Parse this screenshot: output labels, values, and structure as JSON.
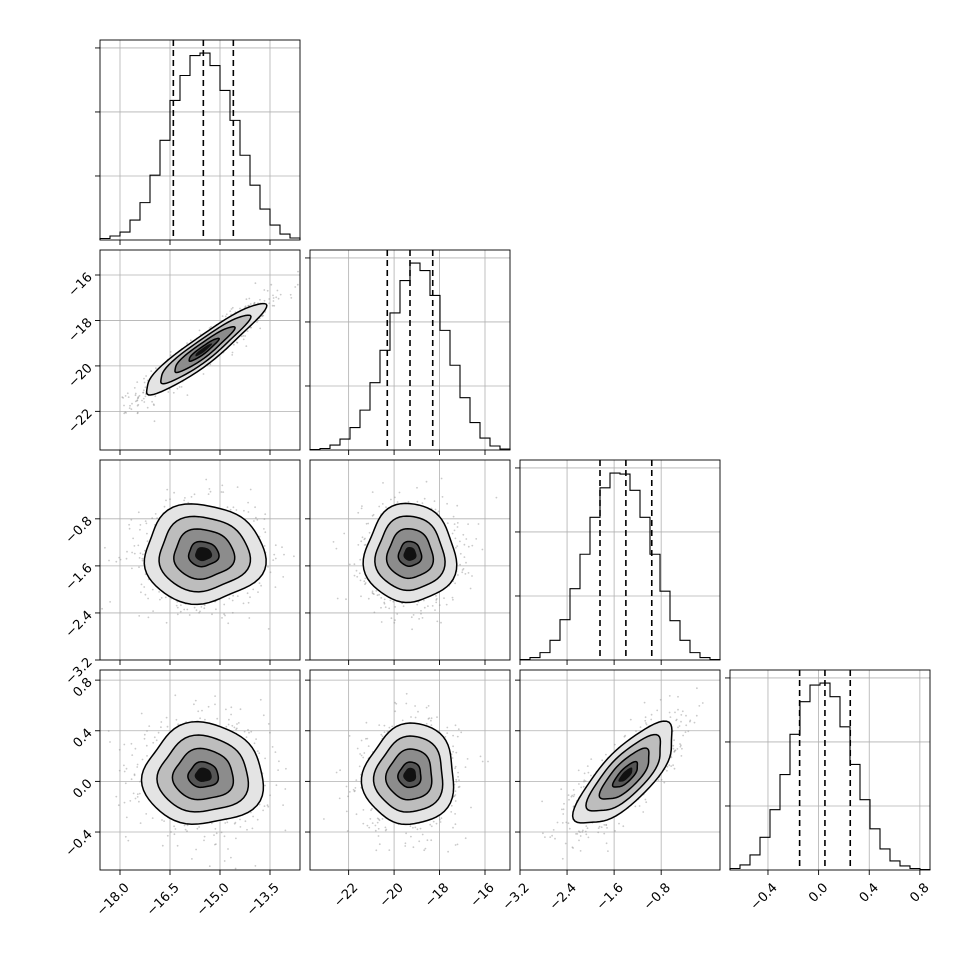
{
  "chart_data": {
    "type": "corner",
    "grid": true,
    "parameters": [
      {
        "name": "",
        "mean": -15.5,
        "std": 0.9,
        "range": [
          -18.6,
          -12.6
        ],
        "ticks": [
          -18.0,
          -16.5,
          -15.0,
          -13.5
        ],
        "tick_labels": [
          "−18.0",
          "−16.5",
          "−15.0",
          "−13.5"
        ],
        "quantiles": [
          -16.4,
          -15.5,
          -14.6
        ]
      },
      {
        "name": "",
        "mean": -19.3,
        "std": 1.0,
        "range": [
          -23.7,
          -14.9
        ],
        "ticks": [
          -22,
          -20,
          -18,
          -16
        ],
        "tick_labels": [
          "−22",
          "−20",
          "−18",
          "−16"
        ],
        "quantiles": [
          -20.3,
          -19.3,
          -18.3
        ]
      },
      {
        "name": "",
        "mean": -1.4,
        "std": 0.42,
        "range": [
          -3.2,
          0.2
        ],
        "ticks": [
          -3.2,
          -2.4,
          -1.6,
          -0.8
        ],
        "tick_labels": [
          "−3.2",
          "−2.4",
          "−1.6",
          "−0.8"
        ],
        "quantiles": [
          -1.84,
          -1.4,
          -0.96
        ]
      },
      {
        "name": "",
        "mean": 0.05,
        "std": 0.2,
        "range": [
          -0.7,
          0.88
        ],
        "ticks": [
          -0.4,
          0.0,
          0.4,
          0.8
        ],
        "tick_labels": [
          "−0.4",
          "0.0",
          "0.4",
          "0.8"
        ],
        "quantiles": [
          -0.15,
          0.05,
          0.25
        ]
      }
    ],
    "correlations": [
      {
        "x": 0,
        "y": 1,
        "rho": 0.93
      },
      {
        "x": 0,
        "y": 2,
        "rho": 0.0
      },
      {
        "x": 1,
        "y": 2,
        "rho": 0.0
      },
      {
        "x": 0,
        "y": 3,
        "rho": 0.0
      },
      {
        "x": 1,
        "y": 3,
        "rho": 0.05
      },
      {
        "x": 2,
        "y": 3,
        "rho": 0.75
      }
    ],
    "histograms": [
      {
        "param": 0,
        "bins": 20,
        "counts": [
          3,
          8,
          16,
          40,
          75,
          130,
          200,
          280,
          330,
          370,
          375,
          350,
          300,
          240,
          170,
          110,
          62,
          30,
          12,
          4
        ]
      },
      {
        "param": 1,
        "bins": 20,
        "counts": [
          1,
          3,
          10,
          22,
          45,
          80,
          135,
          200,
          275,
          340,
          375,
          360,
          310,
          240,
          170,
          105,
          55,
          24,
          8,
          2
        ]
      },
      {
        "param": 2,
        "bins": 20,
        "counts": [
          1,
          5,
          15,
          40,
          82,
          145,
          215,
          290,
          350,
          380,
          378,
          345,
          290,
          215,
          140,
          80,
          40,
          15,
          5,
          1
        ]
      },
      {
        "param": 3,
        "bins": 20,
        "counts": [
          3,
          10,
          30,
          65,
          120,
          190,
          270,
          335,
          368,
          372,
          345,
          285,
          210,
          140,
          82,
          42,
          18,
          8,
          3,
          1
        ]
      }
    ],
    "contour_levels": [
      0.5,
      1.0,
      1.5,
      2.0
    ],
    "scatter_points_per_panel": 900,
    "colors": {
      "contour": "#000000",
      "scatter": "#8a8a8a",
      "density_light": "#ffffff",
      "density_dark": "#000000",
      "grid": "#b0b0b0"
    }
  }
}
